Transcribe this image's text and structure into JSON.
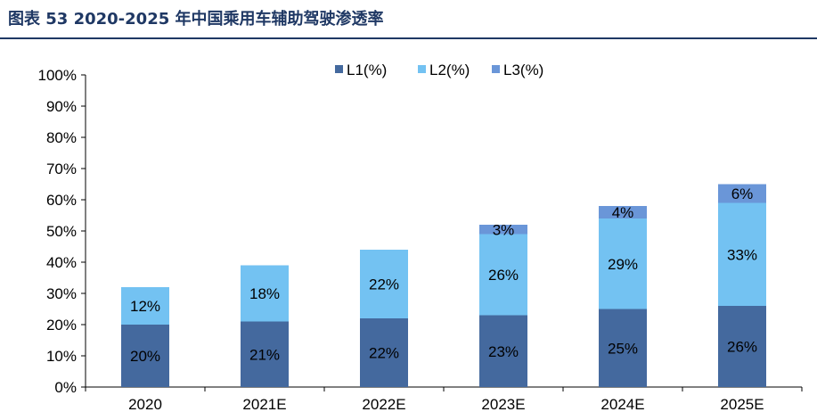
{
  "figure": {
    "title": "图表 53 2020-2025 年中国乘用车辅助驾驶渗透率"
  },
  "chart_data": {
    "type": "bar",
    "stacked": true,
    "categories": [
      "2020",
      "2021E",
      "2022E",
      "2023E",
      "2024E",
      "2025E"
    ],
    "series": [
      {
        "name": "L1(%)",
        "color": "#44699e",
        "values": [
          20,
          21,
          22,
          23,
          25,
          26
        ],
        "labels": [
          "20%",
          "21%",
          "22%",
          "23%",
          "25%",
          "26%"
        ]
      },
      {
        "name": "L2(%)",
        "color": "#73c2f2",
        "values": [
          12,
          18,
          22,
          26,
          29,
          33
        ],
        "labels": [
          "12%",
          "18%",
          "22%",
          "26%",
          "29%",
          "33%"
        ]
      },
      {
        "name": "L3(%)",
        "color": "#6a96d8",
        "values": [
          0,
          0,
          0,
          3,
          4,
          6
        ],
        "labels": [
          "",
          "",
          "",
          "3%",
          "4%",
          "6%"
        ]
      }
    ],
    "ylim": [
      0,
      100
    ],
    "yticks": [
      0,
      10,
      20,
      30,
      40,
      50,
      60,
      70,
      80,
      90,
      100
    ],
    "ytick_labels": [
      "0%",
      "10%",
      "20%",
      "30%",
      "40%",
      "50%",
      "60%",
      "70%",
      "80%",
      "90%",
      "100%"
    ],
    "grid": false,
    "legend": "top-center"
  }
}
